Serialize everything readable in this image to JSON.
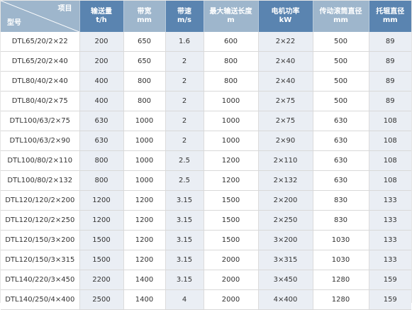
{
  "table": {
    "corner_top": "项目",
    "corner_bottom": "型号",
    "columns": [
      {
        "name": "输送量",
        "unit": "t/h"
      },
      {
        "name": "带宽",
        "unit": "mm"
      },
      {
        "name": "带速",
        "unit": "m/s"
      },
      {
        "name": "最大输送长度",
        "unit": "m"
      },
      {
        "name": "电机功率",
        "unit": "kW"
      },
      {
        "name": "传动滚筒直径",
        "unit": "mm"
      },
      {
        "name": "托辊直径",
        "unit": "mm"
      }
    ],
    "rows": [
      [
        "DTL65/20/2×22",
        "200",
        "650",
        "1.6",
        "600",
        "2×22",
        "500",
        "89"
      ],
      [
        "DTL65/20/2×40",
        "200",
        "650",
        "2",
        "800",
        "2×40",
        "500",
        "89"
      ],
      [
        "DTL80/40/2×40",
        "400",
        "800",
        "2",
        "800",
        "2×40",
        "500",
        "89"
      ],
      [
        "DTL80/40/2×75",
        "400",
        "800",
        "2",
        "1000",
        "2×75",
        "500",
        "89"
      ],
      [
        "DTL100/63/2×75",
        "630",
        "1000",
        "2",
        "1000",
        "2×75",
        "630",
        "108"
      ],
      [
        "DTL100/63/2×90",
        "630",
        "1000",
        "2",
        "1000",
        "2×90",
        "630",
        "108"
      ],
      [
        "DTL100/80/2×110",
        "800",
        "1000",
        "2.5",
        "1200",
        "2×110",
        "630",
        "108"
      ],
      [
        "DTL100/80/2×132",
        "800",
        "1000",
        "2.5",
        "1200",
        "2×132",
        "630",
        "108"
      ],
      [
        "DTL120/120/2×200",
        "1200",
        "1200",
        "3.15",
        "1500",
        "2×200",
        "830",
        "133"
      ],
      [
        "DTL120/120/2×250",
        "1200",
        "1200",
        "3.15",
        "1500",
        "2×250",
        "830",
        "133"
      ],
      [
        "DTL120/150/3×200",
        "1500",
        "1200",
        "3.15",
        "1500",
        "3×200",
        "1030",
        "133"
      ],
      [
        "DTL120/150/3×315",
        "1500",
        "1200",
        "3.15",
        "2000",
        "3×315",
        "1030",
        "133"
      ],
      [
        "DTL140/220/3×450",
        "2200",
        "1400",
        "3.15",
        "2000",
        "3×450",
        "1280",
        "159"
      ],
      [
        "DTL140/250/4×400",
        "2500",
        "1400",
        "4",
        "2000",
        "4×400",
        "1280",
        "159"
      ]
    ]
  },
  "colors": {
    "header_light": "#9eb6cc",
    "header_dark": "#5a84b0",
    "stripe": "#eaeef4",
    "text": "#333333"
  }
}
